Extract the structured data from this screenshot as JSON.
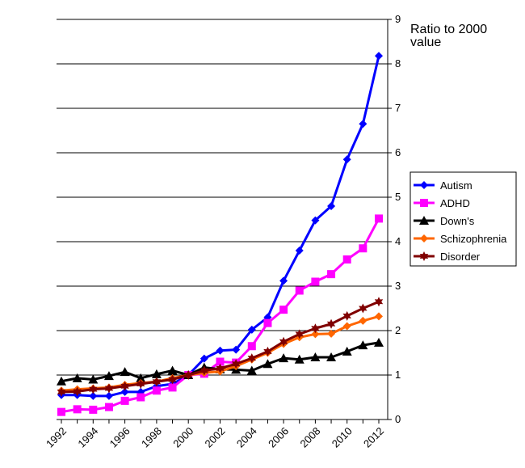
{
  "chart_data": {
    "type": "line",
    "title": "",
    "ylabel_lines": [
      "Ratio to 2000",
      "value"
    ],
    "xlabel": "",
    "ylim": [
      0,
      9
    ],
    "yticks": [
      0,
      1,
      2,
      3,
      4,
      5,
      6,
      7,
      8,
      9
    ],
    "xtick_labels": [
      "1992",
      "1994",
      "1996",
      "1998",
      "2000",
      "2002",
      "2004",
      "2006",
      "2008",
      "2010",
      "2012"
    ],
    "x": [
      1992,
      1993,
      1994,
      1995,
      1996,
      1997,
      1998,
      1999,
      2000,
      2001,
      2002,
      2003,
      2004,
      2005,
      2006,
      2007,
      2008,
      2009,
      2010,
      2011,
      2012
    ],
    "grid": "horizontal",
    "legend_position": "right",
    "series": [
      {
        "name": "Autism",
        "color": "#0000ff",
        "marker": "diamond",
        "values": [
          0.55,
          0.55,
          0.53,
          0.53,
          0.62,
          0.62,
          0.75,
          0.8,
          1.0,
          1.37,
          1.55,
          1.57,
          2.02,
          2.3,
          3.12,
          3.8,
          4.48,
          4.8,
          5.85,
          6.65,
          8.18
        ]
      },
      {
        "name": "ADHD",
        "color": "#ff00ff",
        "marker": "square",
        "values": [
          0.17,
          0.23,
          0.22,
          0.28,
          0.42,
          0.5,
          0.65,
          0.72,
          1.0,
          1.03,
          1.3,
          1.28,
          1.65,
          2.17,
          2.47,
          2.9,
          3.1,
          3.27,
          3.6,
          3.85,
          4.52
        ]
      },
      {
        "name": "Down's",
        "color": "#000000",
        "marker": "triangle",
        "values": [
          0.86,
          0.93,
          0.9,
          0.98,
          1.07,
          0.93,
          1.02,
          1.1,
          1.0,
          1.17,
          1.13,
          1.12,
          1.1,
          1.25,
          1.38,
          1.35,
          1.4,
          1.4,
          1.53,
          1.67,
          1.73
        ]
      },
      {
        "name": "Schizophrenia",
        "color": "#ff6600",
        "marker": "diamond",
        "values": [
          0.65,
          0.68,
          0.7,
          0.72,
          0.78,
          0.82,
          0.85,
          0.93,
          1.0,
          1.05,
          1.08,
          1.2,
          1.35,
          1.5,
          1.7,
          1.85,
          1.92,
          1.93,
          2.1,
          2.22,
          2.32
        ]
      },
      {
        "name": "Disorder",
        "color": "#800000",
        "marker": "star",
        "values": [
          0.62,
          0.63,
          0.68,
          0.7,
          0.75,
          0.8,
          0.85,
          0.9,
          1.0,
          1.1,
          1.15,
          1.25,
          1.38,
          1.53,
          1.75,
          1.92,
          2.05,
          2.15,
          2.33,
          2.5,
          2.65
        ]
      }
    ]
  }
}
